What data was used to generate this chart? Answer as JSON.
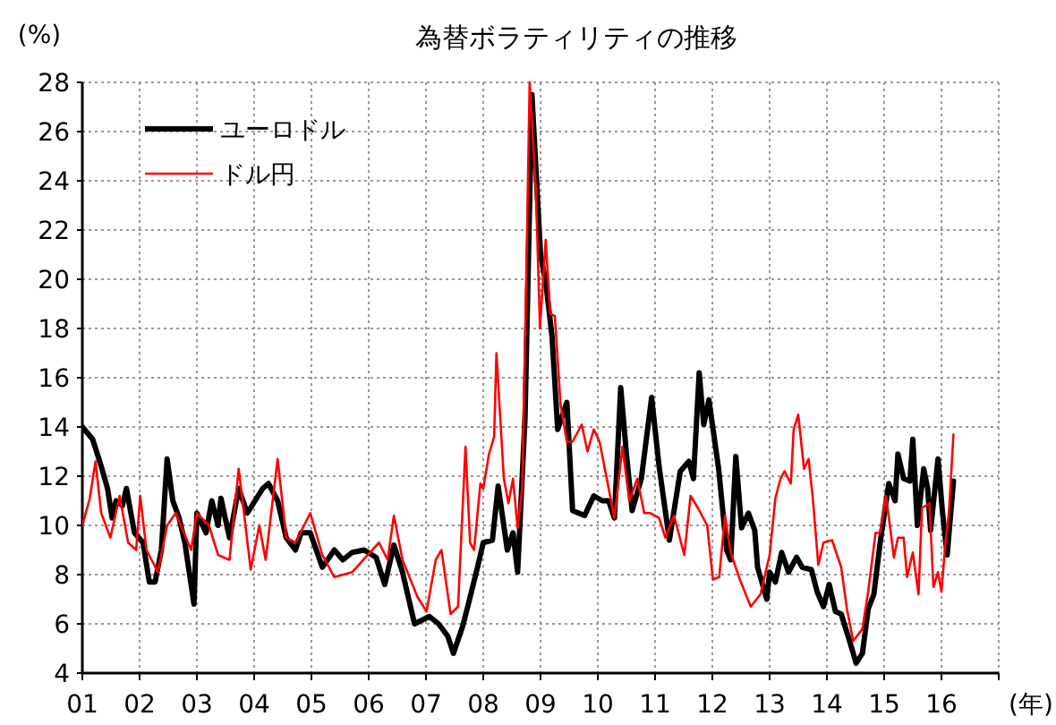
{
  "chart_data": {
    "type": "line",
    "title": "為替ボラティリティの推移",
    "xlabel": "(年)",
    "ylabel": "(%)",
    "xlim": [
      2001,
      2017
    ],
    "ylim": [
      4,
      28
    ],
    "xticks": [
      {
        "value": 2001,
        "label": "01"
      },
      {
        "value": 2002,
        "label": "02"
      },
      {
        "value": 2003,
        "label": "03"
      },
      {
        "value": 2004,
        "label": "04"
      },
      {
        "value": 2005,
        "label": "05"
      },
      {
        "value": 2006,
        "label": "06"
      },
      {
        "value": 2007,
        "label": "07"
      },
      {
        "value": 2008,
        "label": "08"
      },
      {
        "value": 2009,
        "label": "09"
      },
      {
        "value": 2010,
        "label": "10"
      },
      {
        "value": 2011,
        "label": "11"
      },
      {
        "value": 2012,
        "label": "12"
      },
      {
        "value": 2013,
        "label": "13"
      },
      {
        "value": 2014,
        "label": "14"
      },
      {
        "value": 2015,
        "label": "15"
      },
      {
        "value": 2016,
        "label": "16"
      },
      {
        "value": 2017,
        "label": null
      }
    ],
    "yticks": [
      4,
      6,
      8,
      10,
      12,
      14,
      16,
      18,
      20,
      22,
      24,
      26,
      28
    ],
    "grid": true,
    "legend": "top left",
    "series": [
      {
        "name": "ユーロドル",
        "color": "#000000",
        "x": [
          2001.0,
          2001.18,
          2001.33,
          2001.44,
          2001.52,
          2001.59,
          2001.7,
          2001.77,
          2001.91,
          2002.06,
          2002.17,
          2002.27,
          2002.38,
          2002.48,
          2002.58,
          2002.69,
          2002.79,
          2002.95,
          2003.0,
          2003.16,
          2003.26,
          2003.37,
          2003.42,
          2003.57,
          2003.73,
          2003.88,
          2004.15,
          2004.25,
          2004.41,
          2004.56,
          2004.72,
          2004.82,
          2004.98,
          2005.19,
          2005.4,
          2005.55,
          2005.71,
          2005.92,
          2006.13,
          2006.28,
          2006.44,
          2006.59,
          2006.8,
          2007.06,
          2007.22,
          2007.38,
          2007.48,
          2007.64,
          2007.74,
          2007.9,
          2008.0,
          2008.16,
          2008.26,
          2008.42,
          2008.52,
          2008.6,
          2008.73,
          2008.85,
          2008.94,
          2009.0,
          2009.09,
          2009.2,
          2009.3,
          2009.46,
          2009.56,
          2009.77,
          2009.93,
          2010.08,
          2010.19,
          2010.29,
          2010.4,
          2010.5,
          2010.6,
          2010.76,
          2010.94,
          2011.07,
          2011.25,
          2011.44,
          2011.59,
          2011.67,
          2011.77,
          2011.85,
          2011.94,
          2012.11,
          2012.25,
          2012.32,
          2012.41,
          2012.51,
          2012.63,
          2012.74,
          2012.79,
          2012.95,
          2013.0,
          2013.1,
          2013.21,
          2013.33,
          2013.47,
          2013.57,
          2013.73,
          2013.83,
          2013.94,
          2014.04,
          2014.15,
          2014.25,
          2014.41,
          2014.51,
          2014.62,
          2014.72,
          2014.82,
          2014.93,
          2015.08,
          2015.19,
          2015.24,
          2015.34,
          2015.45,
          2015.5,
          2015.58,
          2015.69,
          2015.76,
          2015.81,
          2015.94,
          2016.02,
          2016.1,
          2016.21
        ],
        "values": [
          14.0,
          13.5,
          12.4,
          11.5,
          10.3,
          11.0,
          10.8,
          11.5,
          9.7,
          9.3,
          7.7,
          7.7,
          9.0,
          12.7,
          11.0,
          10.3,
          9.3,
          6.8,
          10.5,
          9.7,
          11.0,
          10.0,
          11.1,
          9.5,
          11.5,
          10.5,
          11.5,
          11.7,
          11.0,
          9.5,
          9.0,
          9.7,
          9.7,
          8.3,
          9.0,
          8.6,
          8.9,
          9.0,
          8.7,
          7.6,
          9.2,
          8.1,
          6.0,
          6.3,
          6.0,
          5.5,
          4.8,
          5.9,
          6.8,
          8.3,
          9.3,
          9.4,
          11.6,
          9.0,
          9.7,
          8.1,
          14.4,
          27.5,
          23.6,
          21.0,
          19.9,
          17.7,
          13.9,
          15.0,
          10.6,
          10.4,
          11.2,
          11.0,
          11.0,
          10.3,
          15.6,
          12.9,
          10.6,
          11.9,
          15.2,
          12.4,
          9.4,
          12.2,
          12.6,
          11.9,
          16.2,
          14.1,
          15.1,
          12.3,
          9.0,
          8.6,
          12.8,
          9.9,
          10.5,
          9.8,
          8.3,
          7.0,
          8.1,
          7.7,
          8.9,
          8.1,
          8.7,
          8.3,
          8.2,
          7.3,
          6.7,
          7.6,
          6.5,
          6.4,
          5.2,
          4.4,
          4.8,
          6.6,
          7.2,
          9.3,
          11.7,
          11.0,
          12.9,
          11.9,
          11.8,
          13.5,
          10.0,
          12.3,
          11.5,
          9.8,
          12.7,
          10.5,
          8.8,
          11.8
        ]
      },
      {
        "name": "ドル円",
        "color": "#ff0000",
        "x": [
          2001.0,
          2001.13,
          2001.23,
          2001.33,
          2001.49,
          2001.65,
          2001.8,
          2001.94,
          2002.01,
          2002.12,
          2002.32,
          2002.48,
          2002.63,
          2002.9,
          2003.0,
          2003.21,
          2003.37,
          2003.57,
          2003.73,
          2003.94,
          2004.09,
          2004.2,
          2004.41,
          2004.56,
          2004.72,
          2004.98,
          2005.19,
          2005.4,
          2005.71,
          2006.02,
          2006.18,
          2006.33,
          2006.44,
          2006.59,
          2006.85,
          2007.01,
          2007.17,
          2007.27,
          2007.43,
          2007.56,
          2007.69,
          2007.77,
          2007.84,
          2007.95,
          2008.0,
          2008.1,
          2008.19,
          2008.23,
          2008.36,
          2008.44,
          2008.52,
          2008.6,
          2008.68,
          2008.75,
          2008.81,
          2008.92,
          2008.99,
          2009.09,
          2009.17,
          2009.25,
          2009.35,
          2009.46,
          2009.56,
          2009.72,
          2009.82,
          2009.93,
          2010.03,
          2010.19,
          2010.29,
          2010.43,
          2010.55,
          2010.69,
          2010.81,
          2010.92,
          2011.07,
          2011.18,
          2011.33,
          2011.51,
          2011.62,
          2011.75,
          2011.91,
          2012.01,
          2012.12,
          2012.22,
          2012.32,
          2012.48,
          2012.67,
          2012.84,
          2013.0,
          2013.1,
          2013.19,
          2013.26,
          2013.37,
          2013.42,
          2013.5,
          2013.6,
          2013.68,
          2013.75,
          2013.85,
          2013.94,
          2014.09,
          2014.25,
          2014.35,
          2014.46,
          2014.62,
          2014.72,
          2014.85,
          2014.93,
          2015.03,
          2015.1,
          2015.17,
          2015.24,
          2015.34,
          2015.4,
          2015.5,
          2015.6,
          2015.66,
          2015.79,
          2015.86,
          2015.94,
          2016.0,
          2016.07,
          2016.13,
          2016.21
        ],
        "values": [
          10.0,
          11.1,
          12.6,
          10.5,
          9.5,
          11.2,
          9.3,
          9.0,
          11.2,
          9.0,
          8.1,
          10.0,
          10.5,
          9.0,
          10.5,
          10.0,
          8.8,
          8.6,
          12.3,
          8.2,
          10.0,
          8.6,
          12.7,
          9.5,
          9.3,
          10.5,
          8.8,
          7.9,
          8.1,
          8.9,
          9.3,
          8.6,
          10.4,
          8.6,
          7.1,
          6.5,
          8.6,
          9.0,
          6.4,
          6.7,
          13.2,
          9.3,
          9.0,
          11.7,
          11.5,
          12.9,
          13.6,
          17.0,
          11.9,
          10.9,
          11.9,
          9.9,
          11.5,
          19.9,
          28.0,
          23.6,
          18.0,
          21.6,
          18.6,
          18.5,
          14.9,
          13.4,
          13.4,
          14.1,
          13.0,
          13.9,
          13.4,
          11.5,
          10.3,
          13.2,
          11.0,
          11.9,
          10.5,
          10.5,
          10.3,
          9.5,
          10.4,
          8.8,
          11.2,
          10.7,
          10.0,
          7.8,
          7.9,
          10.4,
          8.9,
          7.8,
          6.7,
          7.2,
          8.8,
          11.1,
          11.9,
          12.2,
          11.7,
          13.9,
          14.5,
          12.3,
          12.7,
          11.2,
          8.4,
          9.3,
          9.4,
          8.3,
          6.6,
          5.3,
          5.8,
          7.3,
          9.7,
          9.7,
          11.2,
          10.0,
          8.7,
          9.5,
          9.5,
          7.9,
          8.9,
          7.2,
          10.7,
          10.9,
          7.5,
          8.1,
          7.3,
          9.3,
          10.5,
          13.7
        ]
      }
    ]
  }
}
